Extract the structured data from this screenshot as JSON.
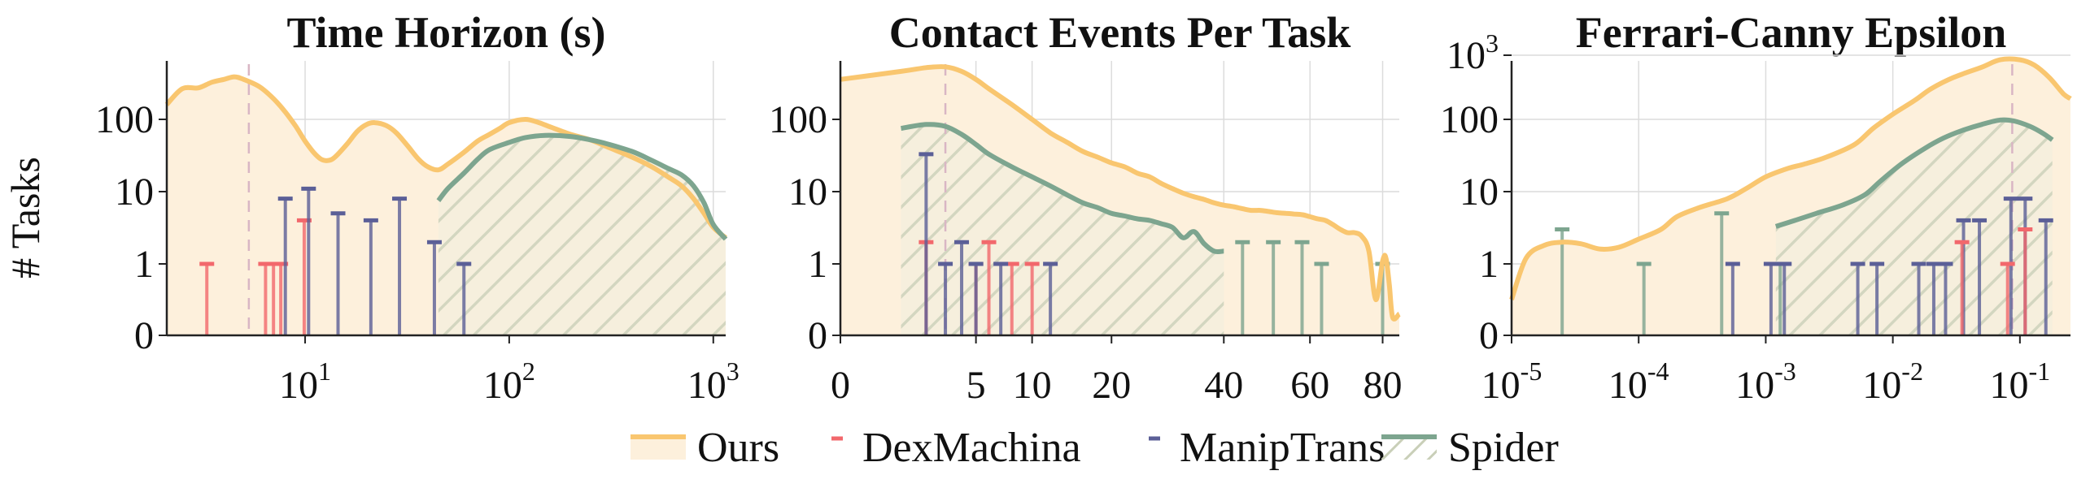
{
  "figure": {
    "y_label": "# Tasks",
    "y_ticks": [
      "0",
      "1",
      "10",
      "100"
    ],
    "legend": [
      {
        "label": "Ours",
        "color": "#f9c66f",
        "marker": "line-fill"
      },
      {
        "label": "DexMachina",
        "color": "#f2686c",
        "marker": "tick"
      },
      {
        "label": "ManipTrans",
        "color": "#5b5f97",
        "marker": "tick"
      },
      {
        "label": "Spider",
        "color": "#7da58f",
        "marker": "line-hatch"
      }
    ]
  },
  "chart_data": [
    {
      "type": "area",
      "title": "Time Horizon (s)",
      "x_scale": "log",
      "xlim": [
        2.1,
        1150
      ],
      "y_scale": "symlog",
      "ylim": [
        0,
        900
      ],
      "x_ticks": [
        {
          "value": 10,
          "base": "10",
          "exp": "1"
        },
        {
          "value": 100,
          "base": "10",
          "exp": "2"
        },
        {
          "value": 1000,
          "base": "10",
          "exp": "3"
        }
      ],
      "y_ticks": [
        "0",
        "1",
        "10",
        "100"
      ],
      "median_x": 5.3,
      "series": [
        {
          "name": "Ours",
          "type": "area",
          "points": [
            [
              2.1,
              170
            ],
            [
              2.5,
              300
            ],
            [
              3.0,
              310
            ],
            [
              3.5,
              380
            ],
            [
              4.0,
              420
            ],
            [
              4.5,
              460
            ],
            [
              5.0,
              420
            ],
            [
              6.0,
              320
            ],
            [
              7.0,
              210
            ],
            [
              8.0,
              130
            ],
            [
              9.0,
              80
            ],
            [
              10,
              50
            ],
            [
              11,
              35
            ],
            [
              12,
              28
            ],
            [
              13,
              27
            ],
            [
              14,
              30
            ],
            [
              16,
              45
            ],
            [
              18,
              68
            ],
            [
              20,
              85
            ],
            [
              22,
              90
            ],
            [
              25,
              82
            ],
            [
              28,
              65
            ],
            [
              32,
              42
            ],
            [
              36,
              28
            ],
            [
              40,
              22
            ],
            [
              45,
              20
            ],
            [
              50,
              24
            ],
            [
              60,
              35
            ],
            [
              70,
              50
            ],
            [
              80,
              62
            ],
            [
              90,
              75
            ],
            [
              100,
              90
            ],
            [
              120,
              100
            ],
            [
              140,
              90
            ],
            [
              160,
              78
            ],
            [
              200,
              62
            ],
            [
              250,
              52
            ],
            [
              300,
              42
            ],
            [
              400,
              30
            ],
            [
              500,
              22
            ],
            [
              600,
              16
            ],
            [
              700,
              12
            ],
            [
              800,
              8
            ],
            [
              900,
              5
            ],
            [
              1000,
              3.2
            ],
            [
              1150,
              2.3
            ]
          ]
        },
        {
          "name": "Spider",
          "type": "area",
          "points": [
            [
              45,
              7.5
            ],
            [
              50,
              11
            ],
            [
              60,
              18
            ],
            [
              70,
              28
            ],
            [
              80,
              38
            ],
            [
              100,
              48
            ],
            [
              120,
              56
            ],
            [
              150,
              60
            ],
            [
              200,
              58
            ],
            [
              250,
              52
            ],
            [
              300,
              46
            ],
            [
              400,
              36
            ],
            [
              500,
              27
            ],
            [
              600,
              21
            ],
            [
              700,
              17
            ],
            [
              800,
              12
            ],
            [
              900,
              7
            ],
            [
              1000,
              3.5
            ],
            [
              1150,
              2.2
            ]
          ]
        },
        {
          "name": "DexMachina",
          "type": "stem",
          "points": [
            [
              3.3,
              1
            ],
            [
              6.4,
              1
            ],
            [
              7.0,
              1
            ],
            [
              7.6,
              1
            ],
            [
              9.9,
              4
            ]
          ]
        },
        {
          "name": "ManipTrans",
          "type": "stem",
          "points": [
            [
              8.0,
              8
            ],
            [
              10.4,
              11
            ],
            [
              14.5,
              5
            ],
            [
              21,
              4
            ],
            [
              29,
              8
            ],
            [
              43,
              2
            ],
            [
              60,
              1
            ]
          ]
        }
      ]
    },
    {
      "type": "area",
      "title": "Contact Events Per Task",
      "x_scale": "sqrt",
      "xlim": [
        0,
        85
      ],
      "y_scale": "symlog",
      "ylim": [
        0,
        900
      ],
      "x_ticks": [
        {
          "value": 0,
          "base": "0"
        },
        {
          "value": 5,
          "base": "5"
        },
        {
          "value": 10,
          "base": "10"
        },
        {
          "value": 20,
          "base": "20"
        },
        {
          "value": 40,
          "base": "40"
        },
        {
          "value": 60,
          "base": "60"
        },
        {
          "value": 80,
          "base": "80"
        }
      ],
      "y_ticks": [
        "0",
        "1",
        "10",
        "100"
      ],
      "median_x": 3,
      "series": [
        {
          "name": "Ours",
          "type": "area",
          "points": [
            [
              0,
              420
            ],
            [
              1,
              560
            ],
            [
              2,
              640
            ],
            [
              3,
              660
            ],
            [
              4,
              560
            ],
            [
              5,
              420
            ],
            [
              6,
              300
            ],
            [
              8,
              170
            ],
            [
              10,
              100
            ],
            [
              12,
              65
            ],
            [
              14,
              48
            ],
            [
              16,
              36
            ],
            [
              18,
              30
            ],
            [
              20,
              25
            ],
            [
              22,
              22
            ],
            [
              24,
              18
            ],
            [
              26,
              16
            ],
            [
              28,
              13
            ],
            [
              30,
              11
            ],
            [
              32,
              9.5
            ],
            [
              34,
              8.5
            ],
            [
              36,
              7.8
            ],
            [
              38,
              7
            ],
            [
              40,
              6.5
            ],
            [
              42,
              6.2
            ],
            [
              44,
              5.8
            ],
            [
              46,
              5.5
            ],
            [
              48,
              5.5
            ],
            [
              50,
              5.3
            ],
            [
              52,
              5.1
            ],
            [
              54,
              5.0
            ],
            [
              56,
              4.9
            ],
            [
              58,
              4.8
            ],
            [
              60,
              4.5
            ],
            [
              62,
              4.2
            ],
            [
              64,
              4
            ],
            [
              66,
              3.5
            ],
            [
              68,
              3.0
            ],
            [
              70,
              2.7
            ],
            [
              72,
              2.7
            ],
            [
              74,
              2.4
            ],
            [
              76,
              1.5
            ],
            [
              78,
              0.5
            ],
            [
              80,
              1.1
            ],
            [
              81,
              1.2
            ],
            [
              82,
              0.7
            ],
            [
              83,
              0.25
            ],
            [
              85,
              0.3
            ]
          ]
        },
        {
          "name": "Spider",
          "type": "area",
          "points": [
            [
              1,
              75
            ],
            [
              2,
              85
            ],
            [
              3,
              80
            ],
            [
              4,
              62
            ],
            [
              5,
              45
            ],
            [
              6,
              33
            ],
            [
              8,
              22
            ],
            [
              10,
              16
            ],
            [
              12,
              12
            ],
            [
              14,
              9
            ],
            [
              16,
              7
            ],
            [
              18,
              6
            ],
            [
              20,
              5
            ],
            [
              22,
              4.6
            ],
            [
              24,
              4.2
            ],
            [
              26,
              4
            ],
            [
              28,
              3.6
            ],
            [
              30,
              3.2
            ],
            [
              32,
              2.3
            ],
            [
              34,
              2.8
            ],
            [
              36,
              1.9
            ],
            [
              38,
              1.5
            ],
            [
              40,
              1.5
            ]
          ]
        },
        {
          "name": "DexMachina",
          "type": "stem",
          "points": [
            [
              2,
              2
            ],
            [
              5,
              1
            ],
            [
              6,
              2
            ],
            [
              8,
              1
            ],
            [
              10,
              1
            ]
          ]
        },
        {
          "name": "ManipTrans",
          "type": "stem",
          "points": [
            [
              2,
              33
            ],
            [
              3,
              1
            ],
            [
              4,
              2
            ],
            [
              5,
              1
            ],
            [
              7,
              1
            ],
            [
              12,
              1
            ]
          ]
        },
        {
          "name": "Spider",
          "type": "stem",
          "points": [
            [
              44,
              2
            ],
            [
              51,
              2
            ],
            [
              58,
              2
            ],
            [
              63,
              1
            ],
            [
              80,
              1
            ]
          ]
        }
      ]
    },
    {
      "type": "area",
      "title": "Ferrari-Canny Epsilon",
      "x_scale": "log",
      "xlim": [
        1e-05,
        0.25
      ],
      "y_scale": "symlog",
      "ylim": [
        0,
        1100
      ],
      "x_ticks": [
        {
          "value": 1e-05,
          "base": "10",
          "exp": "-5"
        },
        {
          "value": 0.0001,
          "base": "10",
          "exp": "-4"
        },
        {
          "value": 0.001,
          "base": "10",
          "exp": "-3"
        },
        {
          "value": 0.01,
          "base": "10",
          "exp": "-2"
        },
        {
          "value": 0.1,
          "base": "10",
          "exp": "-1"
        }
      ],
      "y_ticks": [
        "0",
        "1",
        "10",
        "100",
        "10³"
      ],
      "median_x": 0.087,
      "series": [
        {
          "name": "Ours",
          "type": "area",
          "points": [
            [
              1e-05,
              0.5
            ],
            [
              1.3e-05,
              1.2
            ],
            [
              1.8e-05,
              1.8
            ],
            [
              2.5e-05,
              2.0
            ],
            [
              3.5e-05,
              1.9
            ],
            [
              5e-05,
              1.6
            ],
            [
              7e-05,
              1.7
            ],
            [
              0.0001,
              2.2
            ],
            [
              0.00015,
              3
            ],
            [
              0.0002,
              4.5
            ],
            [
              0.0003,
              6
            ],
            [
              0.0005,
              8
            ],
            [
              0.0007,
              11
            ],
            [
              0.001,
              16
            ],
            [
              0.0015,
              21
            ],
            [
              0.002,
              24
            ],
            [
              0.003,
              30
            ],
            [
              0.005,
              45
            ],
            [
              0.007,
              75
            ],
            [
              0.01,
              120
            ],
            [
              0.015,
              200
            ],
            [
              0.02,
              300
            ],
            [
              0.03,
              450
            ],
            [
              0.05,
              650
            ],
            [
              0.07,
              850
            ],
            [
              0.1,
              850
            ],
            [
              0.13,
              700
            ],
            [
              0.17,
              450
            ],
            [
              0.22,
              250
            ],
            [
              0.25,
              210
            ]
          ]
        },
        {
          "name": "Spider",
          "type": "area",
          "points": [
            [
              0.0012,
              3.3
            ],
            [
              0.0017,
              4.0
            ],
            [
              0.0025,
              5
            ],
            [
              0.004,
              6.5
            ],
            [
              0.006,
              9
            ],
            [
              0.008,
              14
            ],
            [
              0.012,
              25
            ],
            [
              0.018,
              40
            ],
            [
              0.025,
              55
            ],
            [
              0.035,
              70
            ],
            [
              0.05,
              85
            ],
            [
              0.07,
              98
            ],
            [
              0.09,
              95
            ],
            [
              0.12,
              80
            ],
            [
              0.15,
              65
            ],
            [
              0.18,
              52
            ]
          ]
        },
        {
          "name": "Spider",
          "type": "stem",
          "points": [
            [
              2.5e-05,
              3
            ],
            [
              0.00011,
              1
            ],
            [
              0.00045,
              5
            ],
            [
              0.0013,
              1
            ]
          ]
        },
        {
          "name": "ManipTrans",
          "type": "stem",
          "points": [
            [
              0.00055,
              1
            ],
            [
              0.0011,
              1
            ],
            [
              0.0014,
              1
            ],
            [
              0.0053,
              1
            ],
            [
              0.0075,
              1
            ],
            [
              0.016,
              1
            ],
            [
              0.021,
              1
            ],
            [
              0.026,
              1
            ],
            [
              0.036,
              4
            ],
            [
              0.048,
              4
            ],
            [
              0.085,
              8
            ],
            [
              0.11,
              8
            ],
            [
              0.16,
              4
            ]
          ]
        },
        {
          "name": "DexMachina",
          "type": "stem",
          "points": [
            [
              0.035,
              2
            ],
            [
              0.08,
              1
            ],
            [
              0.11,
              3
            ]
          ]
        }
      ]
    }
  ]
}
